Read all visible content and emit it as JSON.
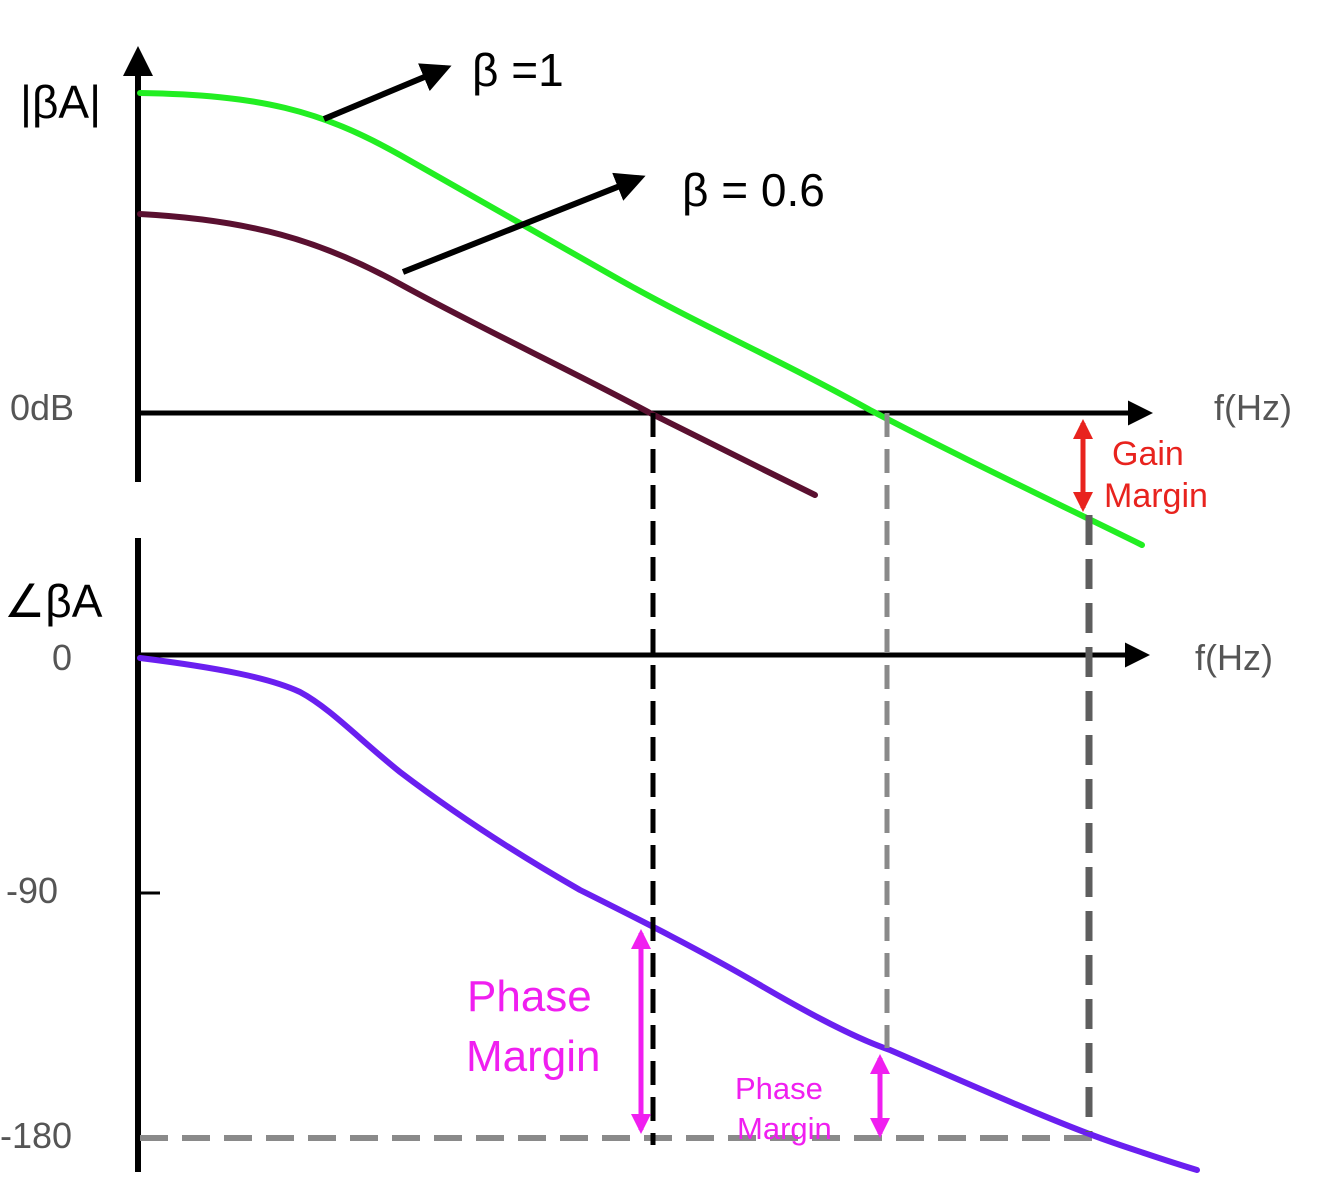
{
  "colors": {
    "beta1_curve": "#22ee22",
    "beta06_curve": "#5a1030",
    "phase_curve": "#6a1ff0",
    "gain_margin": "#e8231e",
    "phase_margin": "#f01ff0",
    "dashed_black": "#000000",
    "dashed_gray": "#8a8a8a"
  },
  "magnitude_plot": {
    "y_label": "|βA|",
    "zero_label": "0dB",
    "x_label": "f(Hz)",
    "beta1_label": "β =1",
    "beta06_label": "β = 0.6",
    "gain_margin_label": [
      "Gain",
      "Margin"
    ]
  },
  "phase_plot": {
    "y_label": "∠βA",
    "tick_0": "0",
    "tick_90": "-90",
    "tick_180": "-180",
    "x_label": "f(Hz)",
    "phase_margin_large": [
      "Phase",
      "Margin"
    ],
    "phase_margin_small": [
      "Phase",
      "Margin"
    ]
  }
}
